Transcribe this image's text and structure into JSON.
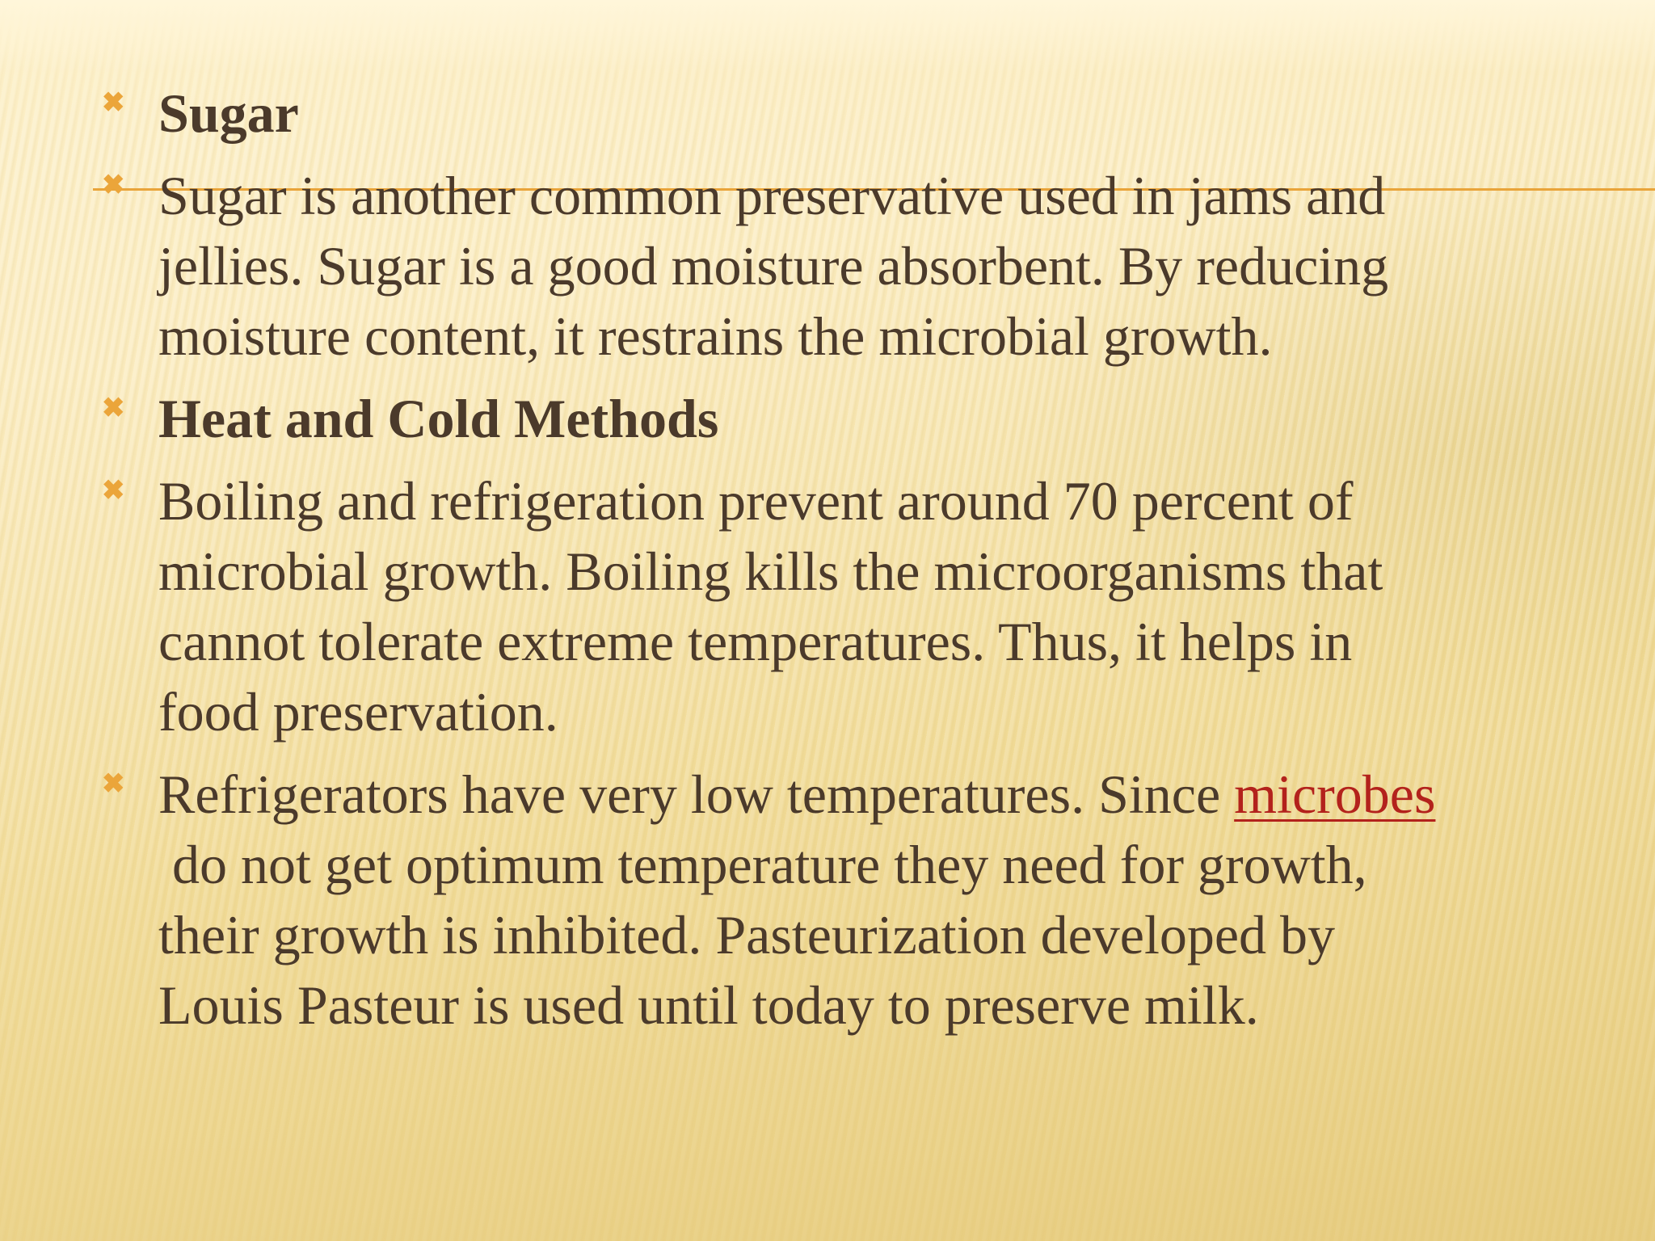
{
  "colors": {
    "text": "#4b3a2b",
    "bullet": "#eba53a",
    "rule": "#e9a43a",
    "link": "#b3221c"
  },
  "bullet_icon": "x-mark-icon",
  "paragraphs": [
    {
      "bold": true,
      "lines": [
        "Sugar"
      ]
    },
    {
      "bold": false,
      "lines": [
        "Sugar is another common preservative used in jams and",
        "jellies. Sugar is a good moisture absorbent. By reducing",
        "moisture content, it restrains the microbial growth."
      ]
    },
    {
      "bold": true,
      "lines": [
        "Heat and Cold Methods"
      ]
    },
    {
      "bold": false,
      "lines": [
        "Boiling and refrigeration prevent around 70 percent of",
        "microbial growth. Boiling kills the microorganisms that",
        "cannot tolerate extreme temperatures. Thus, it helps in",
        "food preservation."
      ]
    },
    {
      "bold": false,
      "lines": [
        "Refrigerators have very low temperatures. Since ",
        "",
        " do not get optimum temperature they need for growth,",
        "their growth is inhibited. Pasteurization developed by",
        "Louis Pasteur is used until today to preserve milk."
      ],
      "link": "microbes"
    }
  ]
}
